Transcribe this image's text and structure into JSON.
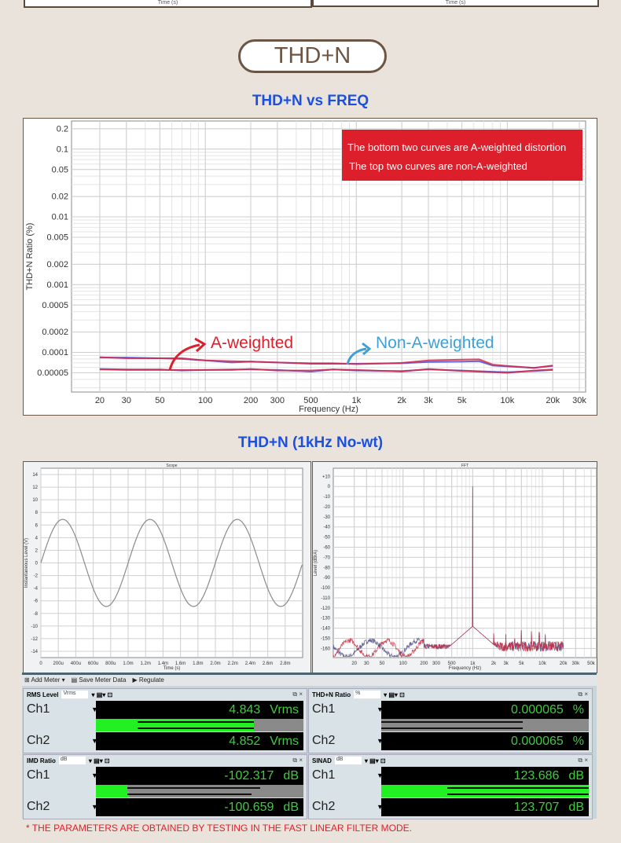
{
  "top_panels": {
    "left_xlabel": "Time (s)",
    "right_xlabel": "Time (s)"
  },
  "section_title": "THD+N",
  "chart1_heading": "THD+N vs FREQ",
  "chart2_heading": "THD+N (1kHz No-wt)",
  "colors": {
    "accent_blue": "#1a4fe0",
    "red": "#dc1f2a",
    "annotation_blue": "#3ea0d8",
    "curve_blue": "#4a4fd8",
    "curve_red": "#d42a4a",
    "meter_green": "#23f023"
  },
  "note": {
    "line1": "The bottom two curves are A-weighted distortion",
    "line2": "The top two curves are non-A-weighted"
  },
  "annotations": {
    "a_weighted": "A-weighted",
    "non_a_weighted": "Non-A-weighted"
  },
  "chart_data": [
    {
      "type": "line",
      "title": "",
      "xlabel": "Frequency (Hz)",
      "ylabel": "THD+N Ratio (%)",
      "xscale": "log",
      "yscale": "log",
      "xlim": [
        13,
        33000
      ],
      "ylim": [
        2.6e-05,
        0.26
      ],
      "grid": true,
      "xticks": [
        "20",
        "30",
        "50",
        "100",
        "200",
        "300",
        "500",
        "1k",
        "2k",
        "3k",
        "5k",
        "10k",
        "20k",
        "30k"
      ],
      "yticks": [
        "0.2",
        "0.1",
        "0.05",
        "0.02",
        "0.01",
        "0.005",
        "0.002",
        "0.001",
        "0.0005",
        "0.0002",
        "0.0001",
        "0.00005"
      ],
      "series": [
        {
          "color": "#4a4fd8",
          "x": [
            20,
            30,
            50,
            70,
            100,
            150,
            200,
            300,
            500,
            700,
            1000,
            2000,
            3000,
            5000,
            6500,
            8000,
            10000,
            15000,
            20000
          ],
          "y": [
            8.4e-05,
            8.4e-05,
            8.2e-05,
            8e-05,
            7.6e-05,
            7.1e-05,
            7.3e-05,
            7.1e-05,
            6.8e-05,
            6.8e-05,
            6.8e-05,
            6.9e-05,
            7.2e-05,
            7.3e-05,
            7.4e-05,
            6.4e-05,
            6.2e-05,
            5.9e-05,
            6.3e-05
          ]
        },
        {
          "color": "#d42a4a",
          "x": [
            20,
            30,
            50,
            70,
            100,
            150,
            200,
            300,
            500,
            700,
            1000,
            2000,
            3000,
            5000,
            6500,
            8000,
            10000,
            15000,
            20000
          ],
          "y": [
            8.5e-05,
            8.2e-05,
            8.2e-05,
            8.2e-05,
            7.6e-05,
            7.4e-05,
            7.3e-05,
            7.1e-05,
            6.9e-05,
            6.9e-05,
            6.7e-05,
            7e-05,
            7.6e-05,
            7.8e-05,
            7.9e-05,
            6.6e-05,
            6.3e-05,
            5.9e-05,
            6.4e-05
          ]
        },
        {
          "color": "#4a4fd8",
          "x": [
            20,
            30,
            50,
            70,
            100,
            150,
            200,
            300,
            500,
            700,
            1000,
            2000,
            3000,
            5000,
            10000,
            15000,
            20000
          ],
          "y": [
            5.7e-05,
            5.6e-05,
            5.6e-05,
            5.4e-05,
            5.5e-05,
            5.6e-05,
            5.6e-05,
            5.5e-05,
            5.2e-05,
            5.6e-05,
            5.4e-05,
            5.3e-05,
            5.6e-05,
            5.4e-05,
            5.1e-05,
            5.3e-05,
            5.5e-05
          ]
        },
        {
          "color": "#d42a4a",
          "x": [
            20,
            30,
            50,
            70,
            100,
            150,
            200,
            300,
            500,
            700,
            1000,
            2000,
            3000,
            5000,
            10000,
            15000,
            20000
          ],
          "y": [
            5.6e-05,
            5.5e-05,
            5.5e-05,
            5.5e-05,
            5.5e-05,
            5.5e-05,
            5.7e-05,
            5.4e-05,
            5.4e-05,
            5.6e-05,
            5.5e-05,
            5.2e-05,
            5.7e-05,
            5.3e-05,
            5e-05,
            5.4e-05,
            5.6e-05
          ]
        }
      ]
    },
    {
      "type": "line",
      "title": "Scope",
      "xlabel": "Time (s)",
      "ylabel": "Instantaneous Level (V)",
      "xlim": [
        0,
        0.003
      ],
      "ylim": [
        -15,
        15
      ],
      "grid": true,
      "xticks": [
        "0",
        "200u",
        "400u",
        "600u",
        "800u",
        "1.0m",
        "1.2m",
        "1.4m",
        "1.6m",
        "1.8m",
        "2.0m",
        "2.2m",
        "2.4m",
        "2.6m",
        "2.8m"
      ],
      "yticks": [
        "14",
        "12",
        "10",
        "8",
        "6",
        "4",
        "2",
        "0",
        "-2",
        "-4",
        "-6",
        "-8",
        "-10",
        "-12",
        "-14"
      ],
      "series": [
        {
          "color": "#8a8a8a",
          "amplitude_v": 6.9,
          "frequency_hz": 1000
        }
      ]
    },
    {
      "type": "line",
      "title": "FFT",
      "xlabel": "Frequency (Hz)",
      "ylabel": "Level (dBrA)",
      "xscale": "log",
      "xlim": [
        10,
        60000
      ],
      "ylim": [
        -169,
        18
      ],
      "grid": true,
      "xticks": [
        "20",
        "30",
        "50",
        "100",
        "200",
        "300",
        "500",
        "1k",
        "2k",
        "3k",
        "5k",
        "10k",
        "20k",
        "30k",
        "50k"
      ],
      "yticks": [
        "+10",
        "0",
        "-10",
        "-20",
        "-30",
        "-40",
        "-50",
        "-60",
        "-70",
        "-80",
        "-90",
        "-100",
        "-110",
        "-120",
        "-130",
        "-140",
        "-150",
        "-160"
      ],
      "fundamental": {
        "freq_hz": 1000,
        "level_db": 0
      },
      "noise_floor_db": -158,
      "harmonics": [
        {
          "freq_hz": 2000,
          "level_db": -145
        },
        {
          "freq_hz": 3000,
          "level_db": -146
        },
        {
          "freq_hz": 4000,
          "level_db": -150
        },
        {
          "freq_hz": 5000,
          "level_db": -142
        },
        {
          "freq_hz": 7000,
          "level_db": -143
        },
        {
          "freq_hz": 9000,
          "level_db": -144
        },
        {
          "freq_hz": 11000,
          "level_db": -146
        }
      ],
      "series": [
        {
          "color": "#4a4a8a"
        },
        {
          "color": "#c8283c"
        }
      ]
    }
  ],
  "toolbar": {
    "add_meter": "Add Meter",
    "save_meter_data": "Save Meter Data",
    "regulate": "Regulate"
  },
  "meters": [
    {
      "title": "RMS Level",
      "unit_select": "Vrms",
      "channels": [
        {
          "label": "Ch1",
          "value": "4.843",
          "unit": "Vrms",
          "fill": 0.76,
          "mark_from": 0.2,
          "mark_to": 0.76
        },
        {
          "label": "Ch2",
          "value": "4.852",
          "unit": "Vrms",
          "fill": 0.76,
          "mark_from": 0.2,
          "mark_to": 0.76
        }
      ]
    },
    {
      "title": "THD+N Ratio",
      "unit_select": "%",
      "channels": [
        {
          "label": "Ch1",
          "value": "0.000065",
          "unit": "%",
          "fill": 0,
          "mark_from": 0,
          "mark_to": 0.68
        },
        {
          "label": "Ch2",
          "value": "0.000065",
          "unit": "%",
          "fill": 0,
          "mark_from": 0,
          "mark_to": 0.68
        }
      ]
    },
    {
      "title": "IMD Ratio",
      "unit_select": "dB",
      "channels": [
        {
          "label": "Ch1",
          "value": "-102.317",
          "unit": "dB",
          "fill": 0.15,
          "mark_from": 0.15,
          "mark_to": 0.79
        },
        {
          "label": "Ch2",
          "value": "-100.659",
          "unit": "dB",
          "fill": 0.16,
          "mark_from": 0.15,
          "mark_to": 0.75
        }
      ]
    },
    {
      "title": "SINAD",
      "unit_select": "dB",
      "channels": [
        {
          "label": "Ch1",
          "value": "123.686",
          "unit": "dB",
          "fill": 1.0,
          "mark_from": 0.32,
          "mark_to": 1.0
        },
        {
          "label": "Ch2",
          "value": "123.707",
          "unit": "dB",
          "fill": 1.0,
          "mark_from": 0.32,
          "mark_to": 1.0
        }
      ]
    }
  ],
  "footer": "* THE PARAMETERS ARE OBTAINED BY TESTING IN THE FAST LINEAR FILTER MODE."
}
